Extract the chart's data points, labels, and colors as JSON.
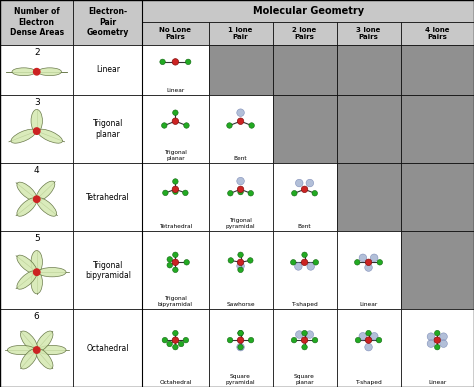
{
  "title": "Molecular Geometry",
  "col_headers_top": [
    "Number of\nElectron\nDense Areas",
    "Electron-\nPair\nGeometry",
    "Molecular Geometry"
  ],
  "col_headers_sub": [
    "No Lone\nPairs",
    "1 lone\nPair",
    "2 lone\nPairs",
    "3 lone\nPairs",
    "4 lone\nPairs"
  ],
  "rows": [
    {
      "num": "2",
      "epg": "Linear",
      "geometries": [
        "Linear",
        "",
        "",
        "",
        ""
      ],
      "active_cols": [
        0
      ],
      "n_lobes": 2
    },
    {
      "num": "3",
      "epg": "Trigonal\nplanar",
      "geometries": [
        "Trigonal\nplanar",
        "Bent",
        "",
        "",
        ""
      ],
      "active_cols": [
        0,
        1
      ],
      "n_lobes": 3
    },
    {
      "num": "4",
      "epg": "Tetrahedral",
      "geometries": [
        "Tetrahedral",
        "Trigonal\npyramidal",
        "Bent",
        "",
        ""
      ],
      "active_cols": [
        0,
        1,
        2
      ],
      "n_lobes": 4
    },
    {
      "num": "5",
      "epg": "Trigonal\nbipyramidal",
      "geometries": [
        "Trigonal\nbipyramidal",
        "Sawhorse",
        "T-shaped",
        "Linear",
        ""
      ],
      "active_cols": [
        0,
        1,
        2,
        3
      ],
      "n_lobes": 5
    },
    {
      "num": "6",
      "epg": "Octahedral",
      "geometries": [
        "Octahedral",
        "Square\npyramidal",
        "Square\nplanar",
        "T-shaped",
        "Linear"
      ],
      "active_cols": [
        0,
        1,
        2,
        3,
        4
      ],
      "n_lobes": 6
    }
  ],
  "header_bg": "#c8c8c8",
  "cell_bg_white": "#ffffff",
  "cell_bg_gray": "#909090",
  "border_color": "#000000",
  "center_color": "#cc2222",
  "bond_color": "#22aa22",
  "lone_color": "#99aacc",
  "lobe_fill": "#d4e8b0",
  "lobe_edge": "#556633",
  "fig_width": 4.74,
  "fig_height": 3.87,
  "dpi": 100
}
